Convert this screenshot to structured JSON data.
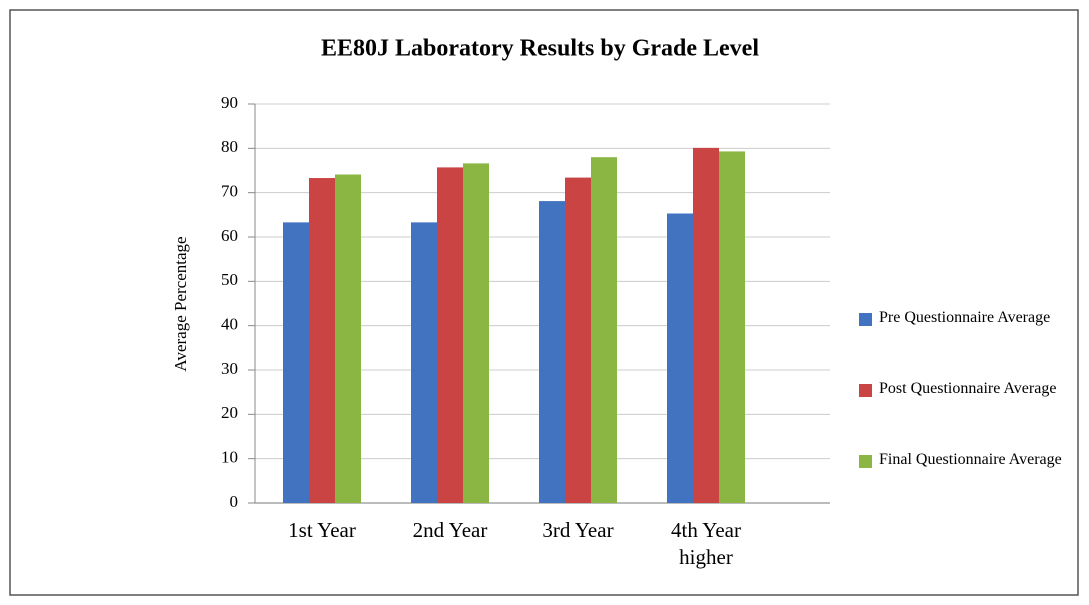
{
  "chart_data": {
    "type": "bar",
    "title": "EE80J Laboratory Results by Grade Level",
    "y_label": "Average Percentage",
    "categories": [
      "1st Year",
      "2nd Year",
      "3rd Year",
      "4th Year higher"
    ],
    "series": [
      {
        "name": "Pre Questionnaire Average",
        "color": "#4273c1",
        "values": [
          63.3,
          63.3,
          68.1,
          65.3
        ]
      },
      {
        "name": "Post Questionnaire Average",
        "color": "#c94443",
        "values": [
          73.3,
          75.7,
          73.4,
          80.1
        ]
      },
      {
        "name": "Final Questionnaire Average",
        "color": "#8cb643",
        "values": [
          74.1,
          76.6,
          78.0,
          79.3
        ]
      }
    ],
    "ylim": [
      0,
      90
    ],
    "yticks": [
      0,
      10,
      20,
      30,
      40,
      50,
      60,
      70,
      80,
      90
    ],
    "grid": true,
    "legend": "right"
  }
}
